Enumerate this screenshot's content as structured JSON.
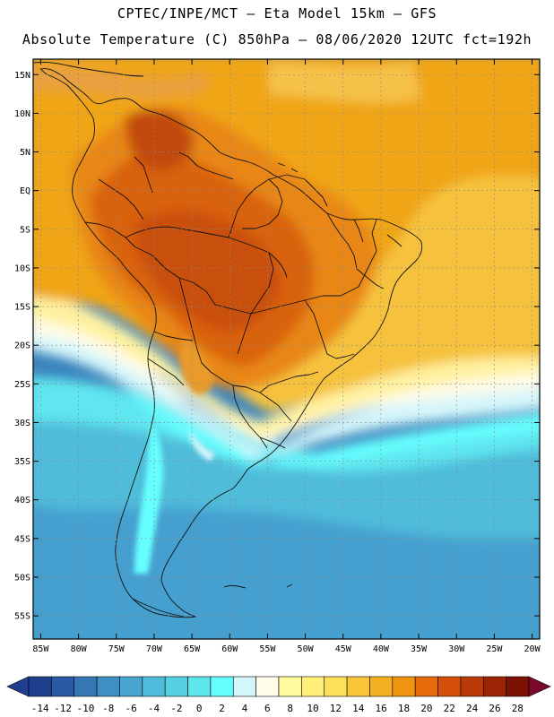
{
  "header": {
    "line1": "CPTEC/INPE/MCT –  Eta Model 15km – GFS",
    "line2": "Absolute Temperature (C) 850hPa – 08/06/2020 12UTC fct=192h"
  },
  "map": {
    "lon_range": [
      -86,
      -19
    ],
    "lat_range": [
      -58,
      17
    ],
    "lat_labels": [
      "15N",
      "10N",
      "5N",
      "EQ",
      "5S",
      "10S",
      "15S",
      "20S",
      "25S",
      "30S",
      "35S",
      "40S",
      "45S",
      "50S",
      "55S"
    ],
    "lat_values": [
      15,
      10,
      5,
      0,
      -5,
      -10,
      -15,
      -20,
      -25,
      -30,
      -35,
      -40,
      -45,
      -50,
      -55
    ],
    "lon_labels": [
      "85W",
      "80W",
      "75W",
      "70W",
      "65W",
      "60W",
      "55W",
      "50W",
      "45W",
      "40W",
      "35W",
      "30W",
      "25W",
      "20W"
    ],
    "lon_values": [
      -85,
      -80,
      -75,
      -70,
      -65,
      -60,
      -55,
      -50,
      -45,
      -40,
      -35,
      -30,
      -25,
      -20
    ]
  },
  "colorbar": {
    "labels": [
      "-14",
      "-12",
      "-10",
      "-8",
      "-6",
      "-4",
      "-2",
      "0",
      "2",
      "4",
      "6",
      "8",
      "10",
      "12",
      "14",
      "16",
      "18",
      "20",
      "22",
      "24",
      "26",
      "28"
    ],
    "colors": [
      "#1d3f8e",
      "#2a5aa6",
      "#3576b4",
      "#3e8fc4",
      "#48a6d0",
      "#4ebcda",
      "#55d0e4",
      "#5ee6ef",
      "#66ffff",
      "#d2f6fa",
      "#fffde9",
      "#fffb9e",
      "#fff07a",
      "#fde05a",
      "#f9c63a",
      "#f4b020",
      "#ee9410",
      "#e46a0a",
      "#d45008",
      "#b93a06",
      "#9a2404",
      "#7c1204"
    ],
    "under_color": "#203e8f",
    "over_color": "#7a0a2c"
  },
  "colors": {
    "land_line": "#111111",
    "grid_line": "#8a8a8a"
  }
}
